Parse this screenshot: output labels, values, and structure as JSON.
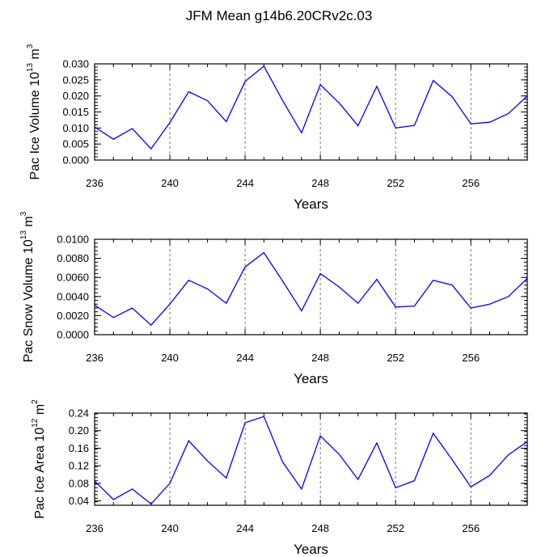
{
  "title": "JFM Mean g14b6.20CRv2c.03",
  "chart_data": [
    {
      "type": "line",
      "name": "ice-volume",
      "ylabel": {
        "main": "Pac Ice Volume 10",
        "exp": "13",
        "unit": " m",
        "unit_exp": "3"
      },
      "xlabel": "Years",
      "xlim": [
        236,
        259
      ],
      "ylim": [
        0,
        0.03
      ],
      "xticks": [
        236,
        240,
        244,
        248,
        252,
        256
      ],
      "yticks": [
        0.0,
        0.005,
        0.01,
        0.015,
        0.02,
        0.025,
        0.03
      ],
      "ytick_labels": [
        "0.000",
        "0.005",
        "0.010",
        "0.015",
        "0.020",
        "0.025",
        "0.030"
      ],
      "yminor": 0.001,
      "vlines": [
        240,
        244,
        248,
        252,
        256
      ],
      "color": "#0000ff",
      "x": [
        236,
        237,
        238,
        239,
        240,
        241,
        242,
        243,
        244,
        245,
        246,
        247,
        248,
        249,
        250,
        251,
        252,
        253,
        254,
        255,
        256,
        257,
        258,
        259
      ],
      "y": [
        0.0103,
        0.0065,
        0.0098,
        0.0035,
        0.0117,
        0.0213,
        0.0185,
        0.012,
        0.0245,
        0.0293,
        0.0185,
        0.0085,
        0.0235,
        0.0178,
        0.0107,
        0.023,
        0.01,
        0.0108,
        0.0248,
        0.0198,
        0.0113,
        0.0118,
        0.0145,
        0.02
      ]
    },
    {
      "type": "line",
      "name": "snow-volume",
      "ylabel": {
        "main": "Pac Snow Volume 10",
        "exp": "13",
        "unit": " m",
        "unit_exp": "3"
      },
      "xlabel": "Years",
      "xlim": [
        236,
        259
      ],
      "ylim": [
        0,
        0.01
      ],
      "xticks": [
        236,
        240,
        244,
        248,
        252,
        256
      ],
      "yticks": [
        0.0,
        0.002,
        0.004,
        0.006,
        0.008,
        0.01
      ],
      "ytick_labels": [
        "0.0000",
        "0.0020",
        "0.0040",
        "0.0060",
        "0.0080",
        "0.0100"
      ],
      "yminor": 0.0004,
      "vlines": [
        240,
        244,
        248,
        252,
        256
      ],
      "color": "#0000ff",
      "x": [
        236,
        237,
        238,
        239,
        240,
        241,
        242,
        243,
        244,
        245,
        246,
        247,
        248,
        249,
        250,
        251,
        252,
        253,
        254,
        255,
        256,
        257,
        258,
        259
      ],
      "y": [
        0.0031,
        0.0018,
        0.0028,
        0.001,
        0.0032,
        0.0057,
        0.0048,
        0.0033,
        0.0071,
        0.0086,
        0.0056,
        0.0025,
        0.0064,
        0.005,
        0.0033,
        0.0058,
        0.0029,
        0.003,
        0.0057,
        0.0052,
        0.0028,
        0.0032,
        0.004,
        0.0059
      ]
    },
    {
      "type": "line",
      "name": "ice-area",
      "ylabel": {
        "main": "Pac Ice Area 10",
        "exp": "12",
        "unit": " m",
        "unit_exp": "2"
      },
      "xlabel": "Years",
      "xlim": [
        236,
        259
      ],
      "ylim": [
        0.03,
        0.24
      ],
      "xticks": [
        236,
        240,
        244,
        248,
        252,
        256
      ],
      "yticks": [
        0.04,
        0.08,
        0.12,
        0.16,
        0.2,
        0.24
      ],
      "ytick_labels": [
        "0.04",
        "0.08",
        "0.12",
        "0.16",
        "0.20",
        "0.24"
      ],
      "yminor": 0.008,
      "vlines": [
        240,
        244,
        248,
        252,
        256
      ],
      "color": "#0000ff",
      "x": [
        236,
        237,
        238,
        239,
        240,
        241,
        242,
        243,
        244,
        245,
        246,
        247,
        248,
        249,
        250,
        251,
        252,
        253,
        254,
        255,
        256,
        257,
        258,
        259
      ],
      "y": [
        0.085,
        0.043,
        0.067,
        0.033,
        0.08,
        0.177,
        0.131,
        0.092,
        0.218,
        0.232,
        0.128,
        0.067,
        0.188,
        0.146,
        0.089,
        0.172,
        0.07,
        0.086,
        0.194,
        0.134,
        0.072,
        0.098,
        0.145,
        0.175
      ]
    }
  ]
}
